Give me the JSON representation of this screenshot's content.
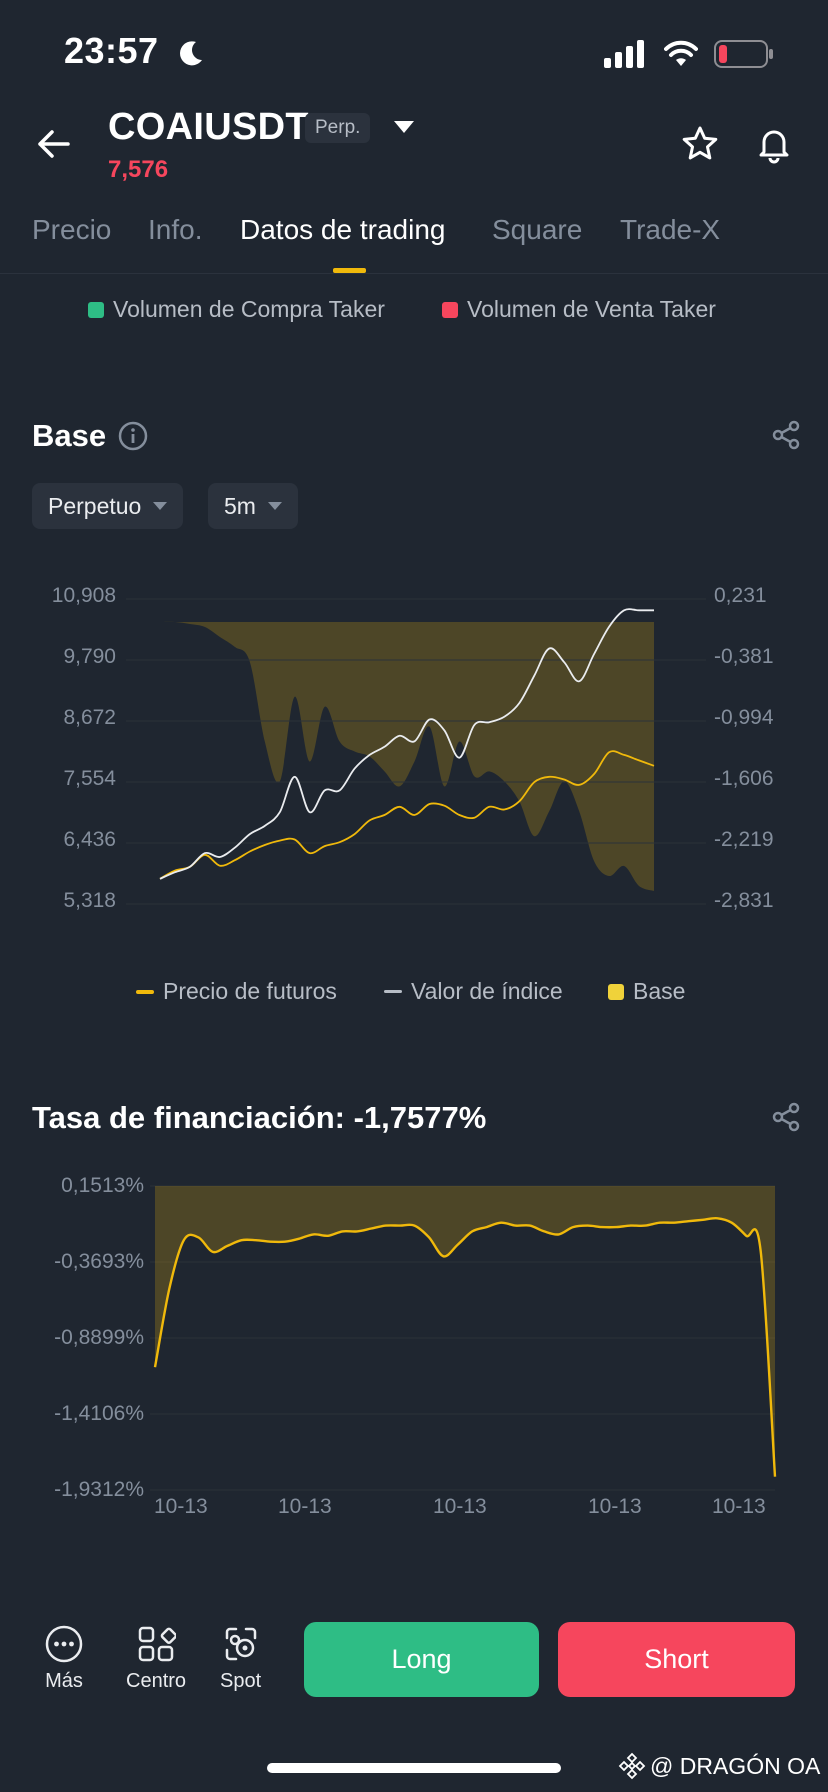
{
  "status": {
    "time": "23:57"
  },
  "header": {
    "symbol": "COAIUSDT",
    "badge": "Perp.",
    "price": "7,576",
    "price_color": "#f6465d"
  },
  "tabs": [
    "Precio",
    "Info.",
    "Datos de trading",
    "Square",
    "Trade-X"
  ],
  "active_tab": "Datos de trading",
  "taker_legend": {
    "buy": "Volumen de Compra Taker",
    "sell": "Volumen de Venta Taker",
    "buy_color": "#2ebd85",
    "sell_color": "#f6465d"
  },
  "basis_section": {
    "title": "Base",
    "dropdown_contract": "Perpetuo",
    "dropdown_interval": "5m",
    "legend": {
      "futures": "Precio de futuros",
      "index": "Valor de índice",
      "basis": "Base"
    }
  },
  "funding_section": {
    "title": "Tasa de financiación: -1,7577%"
  },
  "chart_data": [
    {
      "type": "line",
      "title": "Base",
      "y_left_ticks": [
        "10,908",
        "9,790",
        "8,672",
        "7,554",
        "6,436",
        "5,318"
      ],
      "y_right_ticks": [
        "0,231",
        "-0,381",
        "-0,994",
        "-1,606",
        "-2,219",
        "-2,831"
      ],
      "ylim_left": [
        5.318,
        10.908
      ],
      "ylim_right": [
        -2.831,
        0.231
      ],
      "grid": true,
      "legend_position": "bottom",
      "series": [
        {
          "name": "Precio de futuros",
          "type": "line",
          "color": "#f0b90b",
          "axis": "left",
          "values": [
            5.78,
            5.93,
            6.0,
            6.22,
            6.02,
            6.12,
            6.28,
            6.4,
            6.48,
            6.5,
            6.25,
            6.38,
            6.45,
            6.6,
            6.85,
            6.95,
            7.1,
            6.95,
            7.15,
            7.12,
            6.95,
            6.9,
            7.1,
            7.05,
            7.2,
            7.55,
            7.65,
            7.6,
            7.5,
            7.7,
            8.1,
            8.05,
            7.95,
            7.85
          ]
        },
        {
          "name": "Valor de índice",
          "type": "line",
          "color": "#eaecef",
          "axis": "left",
          "values": [
            5.78,
            5.9,
            6.0,
            6.25,
            6.18,
            6.35,
            6.6,
            6.75,
            7.0,
            7.65,
            7.0,
            7.4,
            7.4,
            7.8,
            8.05,
            8.2,
            8.4,
            8.3,
            8.7,
            8.5,
            8.0,
            8.6,
            8.65,
            8.75,
            9.0,
            9.5,
            10.0,
            9.75,
            9.4,
            9.9,
            10.4,
            10.7,
            10.7,
            10.7
          ]
        },
        {
          "name": "Base",
          "type": "area",
          "color": "#f0b90b",
          "axis": "right",
          "values": [
            0.0,
            0.0,
            -0.02,
            -0.05,
            -0.15,
            -0.25,
            -0.4,
            -1.2,
            -1.6,
            -0.75,
            -1.4,
            -0.85,
            -1.2,
            -1.3,
            -1.35,
            -1.5,
            -1.65,
            -1.4,
            -1.05,
            -1.65,
            -1.2,
            -1.55,
            -1.5,
            -1.6,
            -1.8,
            -2.15,
            -1.9,
            -1.6,
            -1.9,
            -2.4,
            -2.55,
            -2.45,
            -2.65,
            -2.7
          ]
        }
      ]
    },
    {
      "type": "area",
      "title": "Tasa de financiación: -1,7577%",
      "y_ticks": [
        "0,1513%",
        "-0,3693%",
        "-0,8899%",
        "-1,4106%",
        "-1,9312%"
      ],
      "x_ticks": [
        "10-13",
        "10-13",
        "10-13",
        "10-13",
        "10-13"
      ],
      "ylim": [
        -1.9312,
        0.1513
      ],
      "grid": true,
      "series": [
        {
          "type": "area",
          "color": "#f0b90b",
          "values": [
            -1.09,
            -0.55,
            -0.22,
            -0.2,
            -0.3,
            -0.26,
            -0.22,
            -0.22,
            -0.23,
            -0.23,
            -0.21,
            -0.18,
            -0.19,
            -0.16,
            -0.16,
            -0.14,
            -0.12,
            -0.12,
            -0.12,
            -0.2,
            -0.33,
            -0.25,
            -0.16,
            -0.13,
            -0.1,
            -0.12,
            -0.12,
            -0.16,
            -0.18,
            -0.13,
            -0.12,
            -0.13,
            -0.13,
            -0.12,
            -0.12,
            -0.1,
            -0.1,
            -0.09,
            -0.08,
            -0.07,
            -0.1,
            -0.19,
            -0.29,
            -1.84
          ]
        }
      ]
    }
  ],
  "bottom_bar": {
    "more": "Más",
    "center": "Centro",
    "spot": "Spot",
    "long": "Long",
    "short": "Short"
  },
  "watermark": "@ DRAGÓN OA"
}
